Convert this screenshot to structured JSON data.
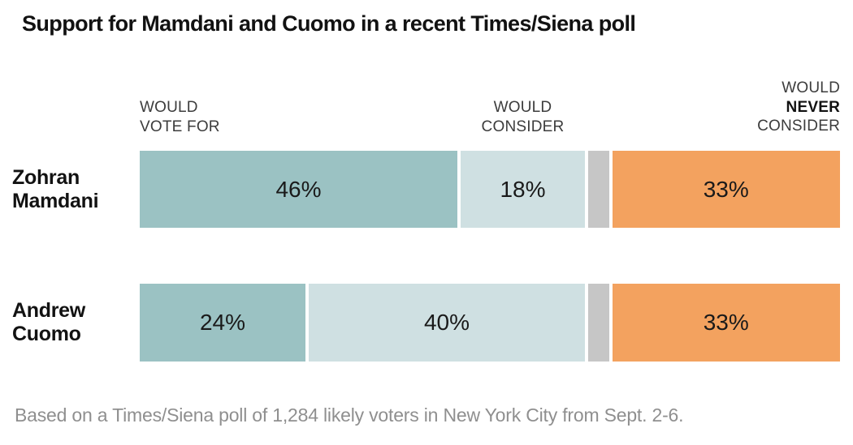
{
  "title": "Support for Mamdani and Cuomo in a recent Times/Siena poll",
  "headers": {
    "vote_for_line1": "WOULD",
    "vote_for_line2": "VOTE FOR",
    "consider_line1": "WOULD",
    "consider_line2": "CONSIDER",
    "never_line1": "WOULD",
    "never_line2": "NEVER",
    "never_line3": "CONSIDER"
  },
  "footnote": "Based on a Times/Siena poll of 1,284 likely voters in New York City from Sept. 2-6.",
  "colors": {
    "would_vote_for": "#9bc2c3",
    "would_consider": "#cfe0e2",
    "no_answer": "#c6c6c6",
    "would_never_consider": "#f3a25f",
    "title_text": "#121212",
    "header_text": "#3c3c3c",
    "value_text": "#1a1a1a",
    "footnote_text": "#8f8f8f"
  },
  "chart_data": {
    "type": "bar",
    "orientation": "horizontal",
    "stacked": true,
    "title": "Support for Mamdani and Cuomo in a recent Times/Siena poll",
    "categories": [
      "Zohran Mamdani",
      "Andrew Cuomo"
    ],
    "category_label_lines": [
      [
        "Zohran",
        "Mamdani"
      ],
      [
        "Andrew",
        "Cuomo"
      ]
    ],
    "series": [
      {
        "key": "would-vote-for",
        "name": "Would vote for",
        "color": "#9bc2c3",
        "values": [
          46,
          24
        ],
        "labeled": true
      },
      {
        "key": "would-consider",
        "name": "Would consider",
        "color": "#cfe0e2",
        "values": [
          18,
          40
        ],
        "labeled": true
      },
      {
        "key": "no-answer",
        "name": "",
        "color": "#c6c6c6",
        "values": [
          3,
          3
        ],
        "labeled": false
      },
      {
        "key": "would-never-consider",
        "name": "Would never consider",
        "color": "#f3a25f",
        "values": [
          33,
          33
        ],
        "labeled": true
      }
    ],
    "value_suffix": "%",
    "xlim": [
      0,
      100
    ],
    "legend_position": "column-headers-above-bars",
    "grid": false,
    "footnote": "Based on a Times/Siena poll of 1,284 likely voters in New York City from Sept. 2-6."
  }
}
